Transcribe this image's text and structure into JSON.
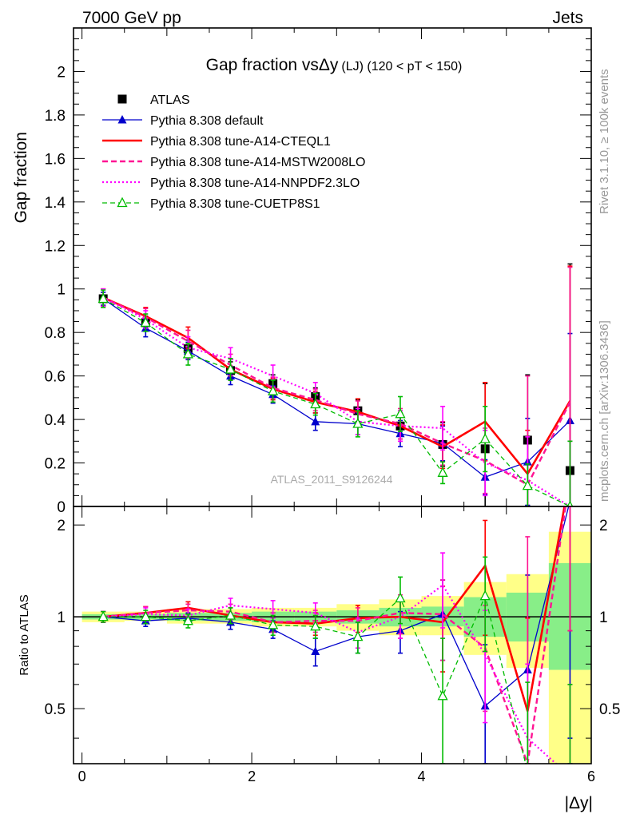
{
  "header": {
    "left": "7000 GeV pp",
    "right": "Jets"
  },
  "side_labels": {
    "rivet": "Rivet 3.1.10, ≥ 100k events",
    "mcplots": "mcplots.cern.ch [arXiv:1306.3436]"
  },
  "watermark": "ATLAS_2011_S9126244",
  "title": {
    "main": "Gap fraction vsΔy",
    "sub": "(LJ) (120 < pT < 150)"
  },
  "colors": {
    "atlas": "#000000",
    "default": "#0000cc",
    "cteql1": "#ff0000",
    "mstw": "#ff1493",
    "nnpdf": "#ff00ff",
    "cuetp8s1": "#00bb00",
    "band_yellow": "#ffff88",
    "band_green": "#88ee88"
  },
  "chart_data": [
    {
      "type": "line",
      "title": "Gap fraction vsΔy (LJ) (120 < pT < 150)",
      "ylabel": "Gap fraction",
      "xlabel": "|Δy|",
      "xlim": [
        -0.1,
        6.0
      ],
      "ylim": [
        0,
        2.2
      ],
      "yticks": [
        "0",
        "0.2",
        "0.4",
        "0.6",
        "0.8",
        "1",
        "1.2",
        "1.4",
        "1.6",
        "1.8",
        "2"
      ],
      "x": [
        0.25,
        0.75,
        1.25,
        1.75,
        2.25,
        2.75,
        3.25,
        3.75,
        4.25,
        4.75,
        5.25,
        5.75
      ],
      "series": [
        {
          "name": "ATLAS",
          "key": "atlas",
          "marker": "square",
          "values": [
            0.955,
            0.845,
            0.725,
            0.625,
            0.565,
            0.505,
            0.44,
            0.37,
            0.285,
            0.265,
            0.305,
            0.165
          ],
          "errors": [
            0.03,
            0.03,
            0.04,
            0.04,
            0.04,
            0.04,
            0.05,
            0.06,
            0.1,
            0.3,
            0.3,
            0.95
          ]
        },
        {
          "name": "Pythia 8.308 default",
          "key": "default",
          "marker": "triangle",
          "values": [
            0.955,
            0.82,
            0.715,
            0.6,
            0.515,
            0.39,
            0.38,
            0.335,
            0.29,
            0.135,
            0.205,
            0.395
          ],
          "errors": [
            0.03,
            0.04,
            0.04,
            0.04,
            0.04,
            0.04,
            0.05,
            0.06,
            0.08,
            0.08,
            0.2,
            0.4
          ]
        },
        {
          "name": "Pythia 8.308 tune-A14-CTEQL1",
          "key": "cteql1",
          "marker": "none",
          "values": [
            0.96,
            0.875,
            0.775,
            0.63,
            0.54,
            0.48,
            0.435,
            0.37,
            0.275,
            0.39,
            0.15,
            0.485
          ],
          "errors": [
            0.04,
            0.04,
            0.05,
            0.05,
            0.05,
            0.05,
            0.06,
            0.07,
            0.1,
            0.18,
            0.2,
            0.62
          ]
        },
        {
          "name": "Pythia 8.308 tune-A14-MSTW2008LO",
          "key": "mstw",
          "marker": "none",
          "values": [
            0.96,
            0.87,
            0.76,
            0.65,
            0.545,
            0.49,
            0.425,
            0.38,
            0.29,
            0.21,
            0.1,
            0.48
          ],
          "errors": [
            0.04,
            0.04,
            0.05,
            0.05,
            0.05,
            0.05,
            0.06,
            0.07,
            0.1,
            0.15,
            0.5,
            0.62
          ]
        },
        {
          "name": "Pythia 8.308 tune-A14-NNPDF2.3LO",
          "key": "nnpdf",
          "marker": "none",
          "values": [
            0.96,
            0.86,
            0.73,
            0.68,
            0.6,
            0.52,
            0.39,
            0.37,
            0.36,
            0.2,
            0.12,
            0.0
          ],
          "errors": [
            0.04,
            0.04,
            0.05,
            0.05,
            0.05,
            0.05,
            0.06,
            0.07,
            0.1,
            0.15,
            0.2,
            0.3
          ]
        },
        {
          "name": "Pythia 8.308 tune-CUETP8S1",
          "key": "cuetp8s1",
          "marker": "open-triangle",
          "values": [
            0.955,
            0.845,
            0.7,
            0.63,
            0.53,
            0.47,
            0.38,
            0.425,
            0.155,
            0.31,
            0.095,
            0.0
          ],
          "errors": [
            0.04,
            0.04,
            0.05,
            0.05,
            0.05,
            0.05,
            0.06,
            0.08,
            0.05,
            0.15,
            0.1,
            0.3
          ]
        }
      ]
    },
    {
      "type": "line",
      "title": "",
      "ylabel": "Ratio to ATLAS",
      "xlabel": "|Δy|",
      "xlim": [
        -0.1,
        6.0
      ],
      "ylim": [
        0.33,
        2.3
      ],
      "scale": "log",
      "yticks": [
        "0.5",
        "1",
        "2"
      ],
      "xticks": [
        "0",
        "2",
        "4",
        "6"
      ],
      "x": [
        0.25,
        0.75,
        1.25,
        1.75,
        2.25,
        2.75,
        3.25,
        3.75,
        4.25,
        4.75,
        5.25,
        5.75
      ],
      "bands": {
        "yellow": [
          [
            0.96,
            1.04
          ],
          [
            0.97,
            1.04
          ],
          [
            0.95,
            1.06
          ],
          [
            0.95,
            1.06
          ],
          [
            0.93,
            1.07
          ],
          [
            0.93,
            1.07
          ],
          [
            0.9,
            1.1
          ],
          [
            0.87,
            1.14
          ],
          [
            0.87,
            1.17
          ],
          [
            0.75,
            1.3
          ],
          [
            0.68,
            1.38
          ],
          [
            0.33,
            1.9
          ]
        ],
        "green": [
          [
            0.98,
            1.02
          ],
          [
            0.98,
            1.02
          ],
          [
            0.97,
            1.03
          ],
          [
            0.97,
            1.03
          ],
          [
            0.96,
            1.04
          ],
          [
            0.96,
            1.04
          ],
          [
            0.95,
            1.05
          ],
          [
            0.93,
            1.07
          ],
          [
            0.93,
            1.08
          ],
          [
            0.86,
            1.16
          ],
          [
            0.83,
            1.2
          ],
          [
            0.67,
            1.5
          ]
        ]
      },
      "series": [
        {
          "name": "Pythia 8.308 default",
          "key": "default",
          "marker": "triangle",
          "values": [
            1.0,
            0.97,
            0.99,
            0.96,
            0.91,
            0.77,
            0.86,
            0.9,
            1.02,
            0.51,
            0.67,
            2.4
          ],
          "errors": [
            0.04,
            0.04,
            0.04,
            0.05,
            0.06,
            0.08,
            0.1,
            0.14,
            0.3,
            0.3,
            0.7,
            2.0
          ]
        },
        {
          "name": "Pythia 8.308 tune-A14-CTEQL1",
          "key": "cteql1",
          "marker": "none",
          "values": [
            1.0,
            1.03,
            1.07,
            1.01,
            0.96,
            0.95,
            0.99,
            1.0,
            0.96,
            1.47,
            0.49,
            2.9
          ],
          "errors": [
            0.04,
            0.05,
            0.05,
            0.06,
            0.07,
            0.08,
            0.1,
            0.15,
            0.3,
            0.6,
            0.5,
            2.0
          ]
        },
        {
          "name": "Pythia 8.308 tune-A14-MSTW2008LO",
          "key": "mstw",
          "marker": "none",
          "values": [
            1.0,
            1.03,
            1.05,
            1.04,
            0.96,
            0.97,
            0.97,
            1.03,
            1.02,
            0.79,
            0.33,
            2.9
          ],
          "errors": [
            0.04,
            0.05,
            0.05,
            0.06,
            0.07,
            0.08,
            0.1,
            0.15,
            0.3,
            0.3,
            1.5,
            2.0
          ]
        },
        {
          "name": "Pythia 8.308 tune-A14-NNPDF2.3LO",
          "key": "nnpdf",
          "marker": "none",
          "values": [
            1.0,
            1.02,
            1.01,
            1.09,
            1.06,
            1.03,
            0.89,
            1.0,
            1.27,
            0.75,
            0.4,
            0.3
          ],
          "errors": [
            0.04,
            0.05,
            0.05,
            0.06,
            0.07,
            0.08,
            0.1,
            0.15,
            0.35,
            0.3,
            0.3,
            0.3
          ]
        },
        {
          "name": "Pythia 8.308 tune-CUETP8S1",
          "key": "cuetp8s1",
          "marker": "open-triangle",
          "values": [
            1.0,
            1.0,
            0.97,
            1.01,
            0.94,
            0.93,
            0.86,
            1.15,
            0.55,
            1.17,
            0.31,
            0.3
          ],
          "errors": [
            0.04,
            0.05,
            0.05,
            0.06,
            0.07,
            0.08,
            0.1,
            0.2,
            0.3,
            0.4,
            0.3,
            0.3
          ]
        }
      ]
    }
  ]
}
